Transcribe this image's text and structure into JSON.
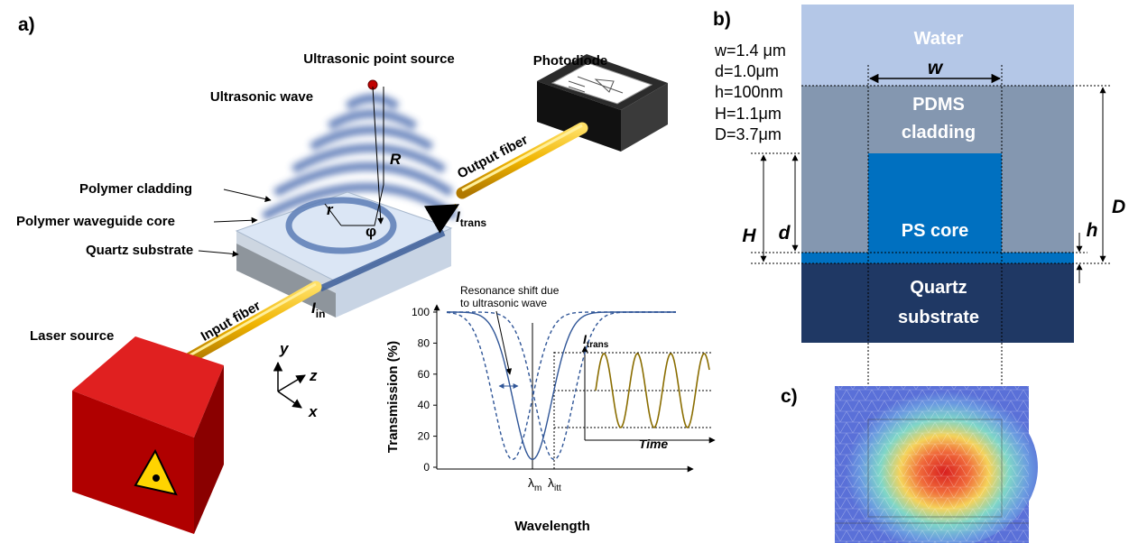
{
  "panel_a": {
    "label": "a)",
    "point_source": "Ultrasonic point source",
    "photodiode": "Photodiode",
    "wave": "Ultrasonic wave",
    "vector_R": "R",
    "output_fiber": "Output fiber",
    "cladding": "Polymer cladding",
    "core": "Polymer waveguide core",
    "substrate": "Quartz substrate",
    "radius": "r",
    "angle": "φ",
    "i_trans": {
      "symbol": "I",
      "sub": "trans"
    },
    "input_fiber": "Input fiber",
    "i_in": {
      "symbol": "I",
      "sub": "in"
    },
    "laser": "Laser source",
    "axes": {
      "y": "y",
      "z": "z",
      "x": "x"
    },
    "inset": {
      "annotation": [
        "Resonance shift due",
        "to ultrasonic wave"
      ],
      "y_label": "Transmission (%)",
      "x_label": "Wavelength",
      "ylim": [
        0,
        100
      ],
      "yticks": [
        0,
        20,
        40,
        60,
        80,
        100
      ],
      "lambda_m": {
        "symbol": "λ",
        "sub": "m"
      },
      "lambda_itt": {
        "symbol": "λ",
        "sub": "itt"
      },
      "signal": {
        "symbol": "I",
        "sub": "trans"
      },
      "time_label": "Time"
    }
  },
  "panel_b": {
    "label": "b)",
    "parameters": [
      "w=1.4 μm",
      "d=1.0μm",
      "h=100nm",
      "H=1.1μm",
      "D=3.7μm"
    ],
    "water": "Water",
    "cladding": [
      "PDMS",
      "cladding"
    ],
    "core": "PS core",
    "substrate": [
      "Quartz",
      "substrate"
    ],
    "dims": {
      "w": "w",
      "H": "H",
      "d": "d",
      "h": "h",
      "D": "D"
    }
  },
  "panel_c": {
    "label": "c)"
  }
}
